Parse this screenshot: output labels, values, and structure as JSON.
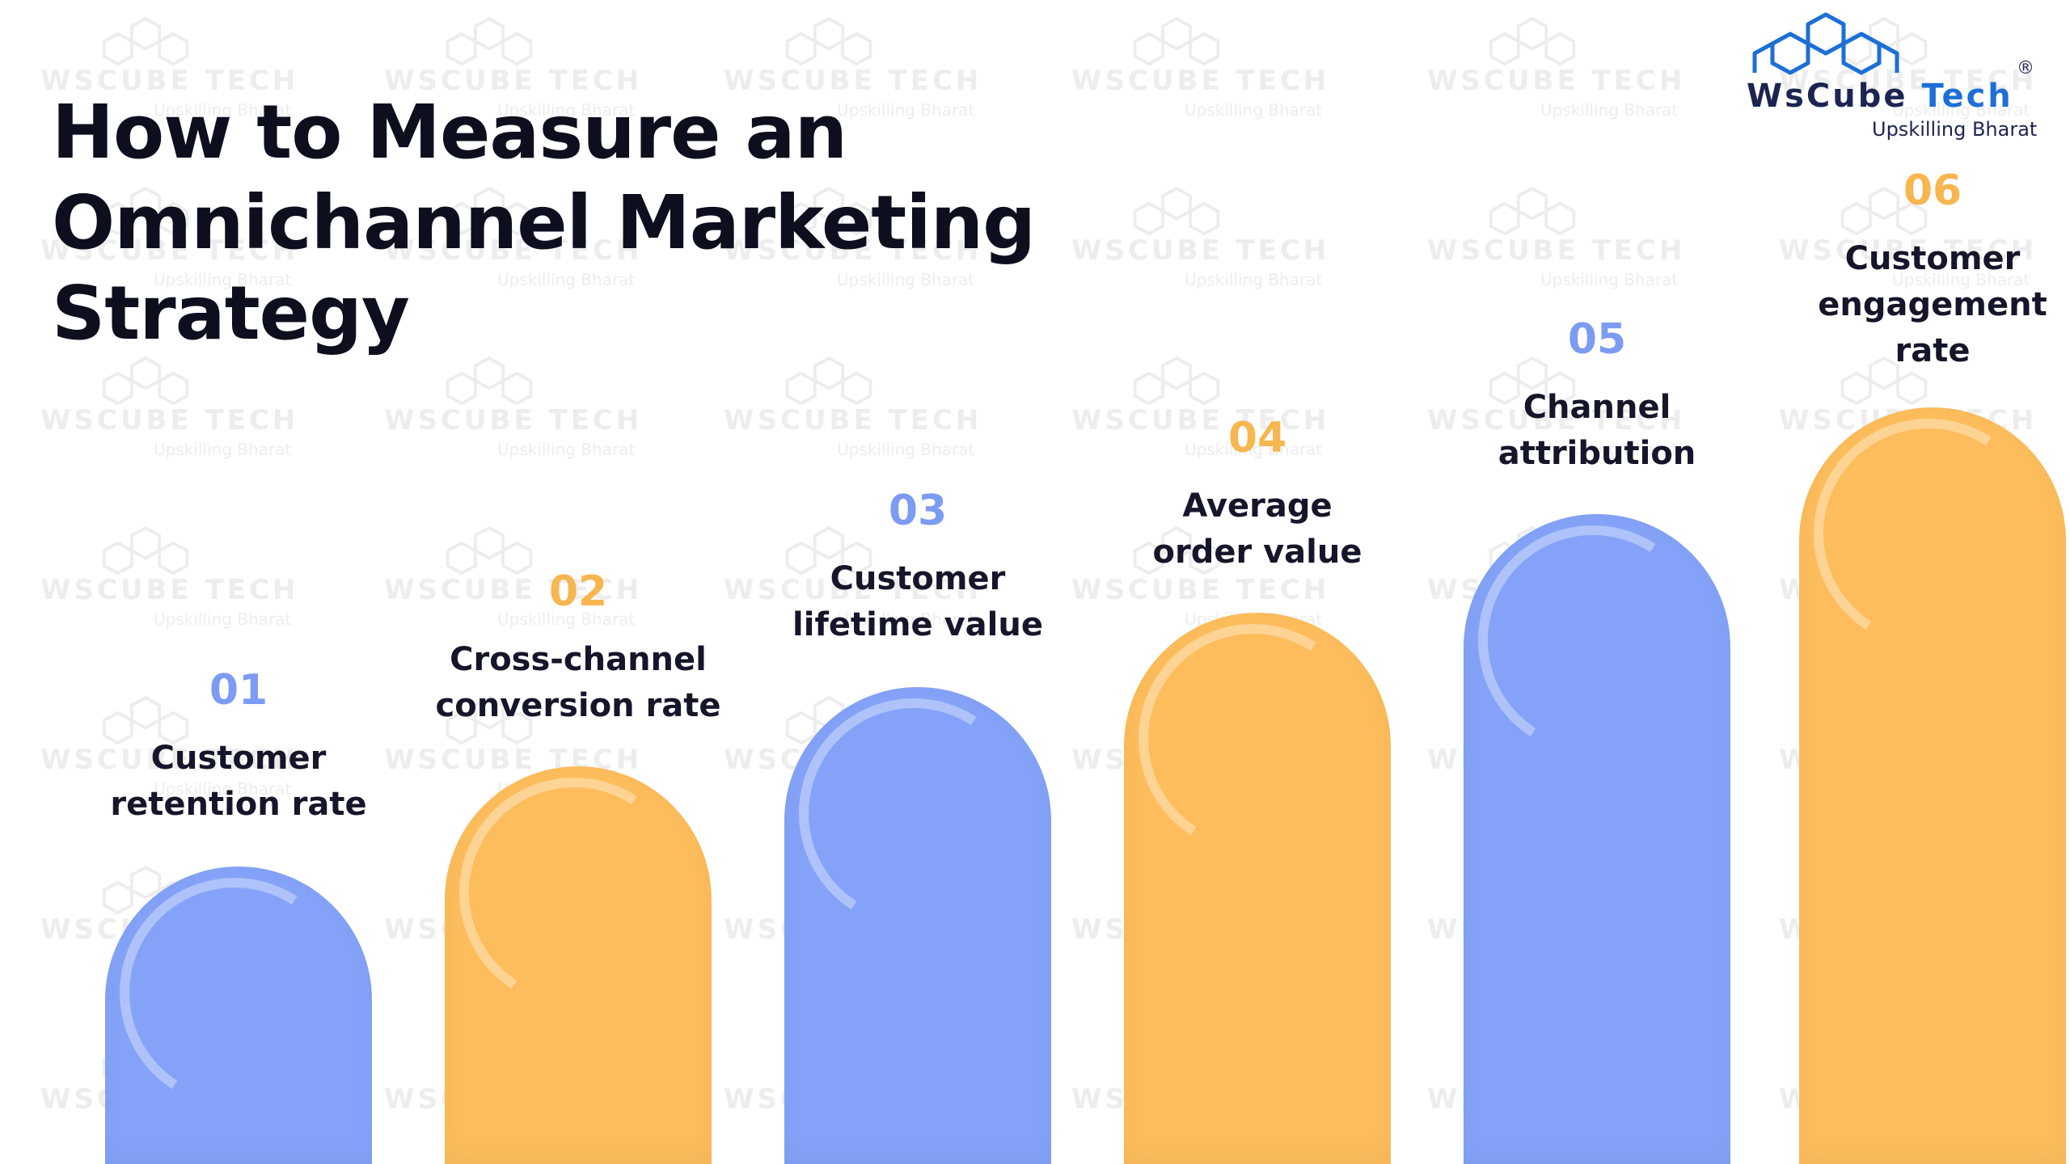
{
  "title_lines": [
    "How to Measure an",
    "Omnichannel Marketing",
    "Strategy"
  ],
  "brand": {
    "name_part1": "WsCube",
    "name_part2": "Tech",
    "registered": "®",
    "tagline": "Upskilling Bharat"
  },
  "watermark": {
    "name": "WsCube Tech",
    "tagline": "Upskilling Bharat"
  },
  "colors": {
    "blue": "#84a3f8",
    "orange": "#fdbd5c",
    "title": "#0d0f1f"
  },
  "steps": [
    {
      "number": "01",
      "label_lines": [
        "Customer",
        "retention rate"
      ],
      "color": "blue"
    },
    {
      "number": "02",
      "label_lines": [
        "Cross-channel",
        "conversion rate"
      ],
      "color": "orange"
    },
    {
      "number": "03",
      "label_lines": [
        "Customer",
        "lifetime value"
      ],
      "color": "blue"
    },
    {
      "number": "04",
      "label_lines": [
        "Average",
        "order value"
      ],
      "color": "orange"
    },
    {
      "number": "05",
      "label_lines": [
        "Channel",
        "attribution"
      ],
      "color": "blue"
    },
    {
      "number": "06",
      "label_lines": [
        "Customer",
        "engagement",
        "rate"
      ],
      "color": "orange"
    }
  ]
}
